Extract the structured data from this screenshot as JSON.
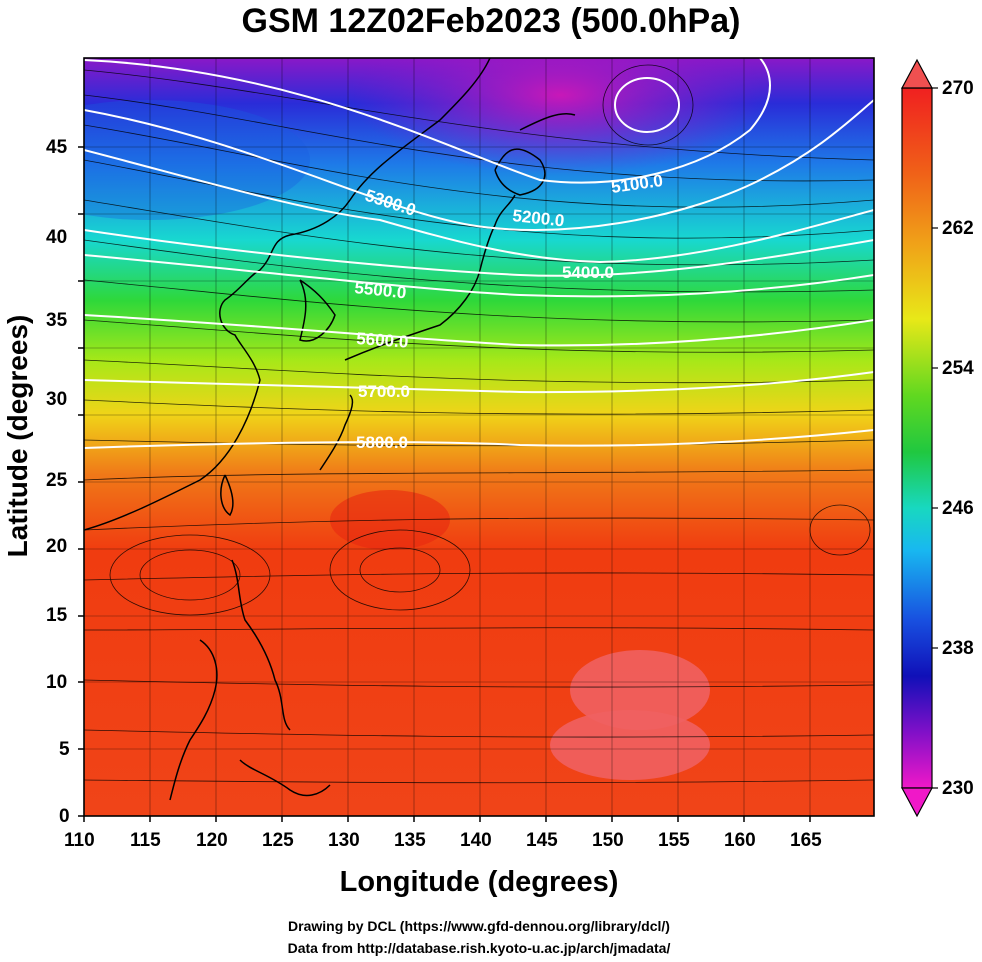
{
  "title": "GSM 12Z02Feb2023 (500.0hPa)",
  "axes": {
    "xlabel": "Longitude (degrees)",
    "ylabel": "Latitude  (degrees)",
    "x_ticks": [
      "110",
      "115",
      "120",
      "125",
      "130",
      "135",
      "140",
      "145",
      "150",
      "155",
      "160",
      "165"
    ],
    "y_ticks": [
      "45",
      "40",
      "35",
      "30",
      "25",
      "20",
      "15",
      "10",
      "5",
      "0"
    ],
    "lon_range": [
      110,
      170
    ],
    "lat_range": [
      0,
      50
    ]
  },
  "colorbar": {
    "labels": [
      "270",
      "262",
      "254",
      "246",
      "238",
      "230"
    ],
    "min": 230,
    "max": 270
  },
  "contours": [
    {
      "label": "5100.0"
    },
    {
      "label": "5200.0"
    },
    {
      "label": "5300.0"
    },
    {
      "label": "5400.0"
    },
    {
      "label": "5500.0"
    },
    {
      "label": "5600.0"
    },
    {
      "label": "5700.0"
    },
    {
      "label": "5800.0"
    }
  ],
  "credits": {
    "line1": "Drawing by DCL (https://www.gfd-dennou.org/library/dcl/)",
    "line2": "Data from http://database.rish.kyoto-u.ac.jp/arch/jmadata/"
  }
}
